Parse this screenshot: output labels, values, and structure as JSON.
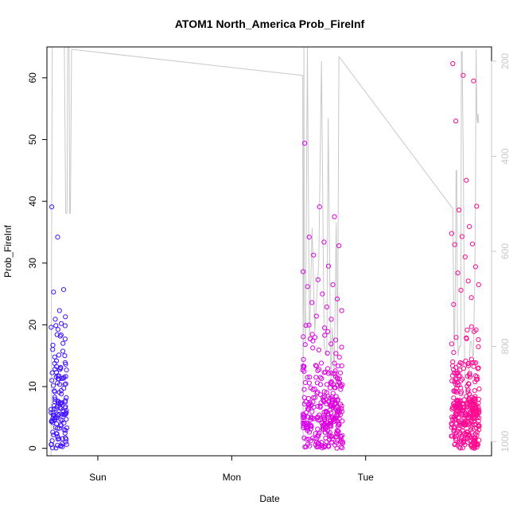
{
  "chart_data": {
    "type": "scatter",
    "title": "ATOM1 North_America Prob_FireInf",
    "xlabel": "Date",
    "ylabel": "Prob_FireInf",
    "x_ticks": [
      "Sun",
      "Mon",
      "Tue"
    ],
    "x_range_days": [
      -0.38,
      2.94
    ],
    "ylim": [
      -1.2,
      65
    ],
    "y_ticks": [
      0,
      10,
      20,
      30,
      40,
      50,
      60
    ],
    "right_axis": {
      "ticks": [
        200,
        400,
        600,
        800,
        1000
      ],
      "range": [
        1030,
        170
      ],
      "color": "#c8c8c8"
    },
    "colors": {
      "start": "#3d16ff",
      "mid": "#cc00ff",
      "end": "#ff0a8c",
      "line": "#c8c8c8"
    },
    "grid": false,
    "clusters": [
      {
        "x_start": -0.35,
        "x_end": -0.23,
        "n": 120,
        "cap": 39.1,
        "peaks": [
          39.1,
          34.2,
          25.7,
          25.3,
          22.3,
          21.3,
          20.9,
          20.2,
          19.6,
          18.4,
          17.0,
          16.7,
          15.1,
          15.0,
          14.8,
          13.1,
          12.7,
          12.3
        ]
      },
      {
        "x_start": 1.53,
        "x_end": 1.83,
        "n": 300,
        "cap": 49.4,
        "peaks": [
          49.4,
          39.1,
          37.5,
          34.2,
          33.4,
          32.8,
          31.3,
          29.5,
          28.6,
          27.3,
          26.5,
          26.2,
          25.0,
          24.2,
          23.6,
          22.9,
          22.3,
          21.4,
          20.9,
          19.9
        ]
      },
      {
        "x_start": 2.64,
        "x_end": 2.85,
        "n": 320,
        "cap": 62.3,
        "peaks": [
          62.3,
          60.4,
          59.5,
          53.0,
          43.4,
          39.2,
          38.6,
          35.9,
          34.8,
          34.3,
          33.1,
          33.0,
          31.0,
          29.4,
          28.4,
          27.1,
          26.5,
          25.6,
          24.4,
          23.3
        ]
      }
    ],
    "line_series": [
      {
        "x": [
          -0.35,
          -0.345,
          -0.34,
          -0.335,
          -0.33,
          -0.32,
          -0.31,
          -0.3,
          -0.29,
          -0.28,
          -0.27,
          -0.26,
          -0.25,
          -0.24,
          -0.23,
          -0.225,
          -0.22,
          -0.215,
          -0.21,
          -0.205,
          -0.2,
          -0.196,
          1.53
        ],
        "y": [
          1030,
          560,
          170,
          170,
          170,
          170,
          170,
          170,
          170,
          170,
          170,
          170,
          170,
          520,
          520,
          170,
          170,
          170,
          520,
          520,
          330,
          175,
          230
        ]
      },
      {
        "x": [
          1.53,
          1.533,
          1.536,
          1.539,
          1.542,
          1.55,
          1.565,
          1.58,
          1.6,
          1.62,
          1.65,
          1.67,
          1.69,
          1.71,
          1.72,
          1.74,
          1.75,
          1.765,
          1.78,
          1.79,
          1.8
        ],
        "y": [
          230,
          1000,
          600,
          170,
          700,
          800,
          170,
          790,
          550,
          770,
          620,
          200,
          800,
          820,
          320,
          880,
          760,
          850,
          540,
          820,
          190
        ]
      },
      {
        "x": [
          1.8,
          2.65,
          2.66,
          2.665,
          2.67,
          2.675,
          2.68,
          2.685,
          2.69,
          2.7,
          2.71,
          2.715,
          2.72,
          2.73,
          2.74,
          2.75,
          2.76,
          2.77,
          2.78,
          2.79,
          2.8,
          2.805,
          2.81,
          2.815,
          2.82,
          2.825,
          2.83,
          2.835,
          2.84,
          2.843
        ],
        "y": [
          190,
          510,
          810,
          760,
          670,
          430,
          430,
          760,
          820,
          800,
          800,
          180,
          180,
          430,
          860,
          900,
          880,
          860,
          790,
          790,
          820,
          820,
          730,
          660,
          480,
          175,
          310,
          330,
          310,
          330
        ]
      }
    ]
  }
}
